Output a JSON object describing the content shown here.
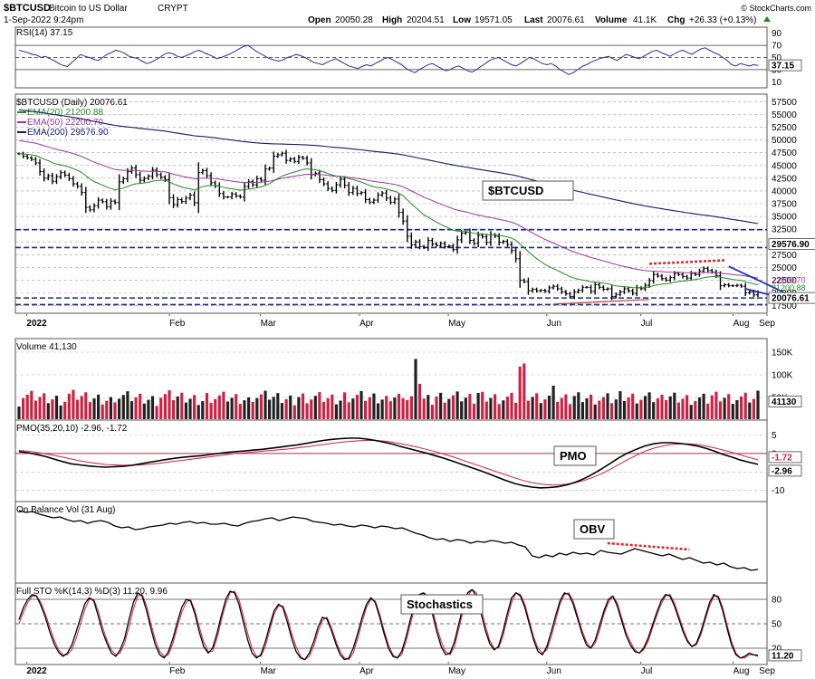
{
  "header": {
    "symbol": "$BTCUSD",
    "name": "Bitcoin to US Dollar",
    "exchange": "CRYPT",
    "datetime": "1-Sep-2022 9:24pm",
    "open_label": "Open",
    "open": "20050.28",
    "high_label": "High",
    "high": "20204.51",
    "low_label": "Low",
    "low": "19571.05",
    "last_label": "Last",
    "last": "20076.61",
    "volume_label": "Volume",
    "volume": "41.1K",
    "chg_label": "Chg",
    "chg": "+26.33 (+0.13%)",
    "watermark": "© StockCharts.com"
  },
  "colors": {
    "up": "#000000",
    "down": "#cc2244",
    "rsi": "#22338a",
    "ema20": "#1e8a1e",
    "ema50": "#a030a0",
    "ema200": "#141a6e",
    "signal": "#cc2244",
    "divergence": "#e0202a",
    "wedge": "#2030c8",
    "border": "#555555",
    "grid": "#c8c8c8"
  },
  "chart_data": [
    {
      "id": "rsi",
      "type": "line",
      "title": "RSI(14) 37.15",
      "y_ticks": [
        "90",
        "70",
        "50",
        "30",
        "10"
      ],
      "last_label": "37.15",
      "ylim": [
        0,
        100
      ],
      "levels": [
        70,
        50,
        30
      ],
      "values": [
        62,
        60,
        58,
        55,
        54,
        50,
        52,
        48,
        45,
        40,
        37,
        35,
        42,
        48,
        55,
        52,
        50,
        47,
        45,
        50,
        55,
        58,
        62,
        60,
        57,
        52,
        50,
        48,
        44,
        40,
        42,
        46,
        50,
        55,
        58,
        56,
        52,
        50,
        53,
        56,
        60,
        62,
        58,
        55,
        52,
        48,
        50,
        53,
        56,
        60,
        64,
        68,
        70,
        65,
        60,
        56,
        52,
        48,
        46,
        44,
        46,
        50,
        52,
        55,
        53,
        50,
        46,
        42,
        40,
        38,
        42,
        45,
        48,
        44,
        40,
        36,
        34,
        32,
        35,
        38,
        36,
        40,
        44,
        48,
        50,
        46,
        42,
        38,
        32,
        28,
        25,
        30,
        34,
        38,
        40,
        36,
        32,
        28,
        30,
        34,
        36,
        32,
        28,
        26,
        30,
        35,
        40,
        45,
        48,
        50,
        46,
        42,
        38,
        36,
        40,
        45,
        50,
        48,
        44,
        40,
        38,
        40,
        36,
        30,
        26,
        22,
        25,
        30,
        35,
        38,
        42,
        45,
        48,
        50,
        52,
        48,
        45,
        50,
        55,
        53,
        50,
        48,
        52,
        56,
        60,
        62,
        58,
        55,
        52,
        56,
        60,
        62,
        58,
        55,
        60,
        64,
        66,
        62,
        58,
        55,
        50,
        45,
        38,
        36,
        40,
        38,
        36,
        38,
        37
      ]
    },
    {
      "id": "price",
      "type": "ohlc",
      "title": "$BTCUSD (Daily) 20076.61",
      "annotation": "$BTCUSD",
      "legend": [
        "EMA(20) 21200.88",
        "EMA(50) 22200.70",
        "EMA(200) 29576.90"
      ],
      "last_label": "20076.61",
      "ema200_label": "29576.90",
      "y_ticks": [
        "57500",
        "55000",
        "52500",
        "50000",
        "47500",
        "45000",
        "42500",
        "40000",
        "37500",
        "35000",
        "32500",
        "30000",
        "27500",
        "25000",
        "22500",
        "20000",
        "17500"
      ],
      "ylim": [
        16000,
        59000
      ],
      "horizontal_levels": [
        32400,
        28900,
        19000,
        17700
      ],
      "closes": [
        47300,
        46800,
        46500,
        46200,
        45500,
        43800,
        42500,
        43000,
        41900,
        42800,
        43600,
        43100,
        42400,
        41400,
        40900,
        39700,
        36800,
        36300,
        37100,
        38200,
        37900,
        36900,
        38000,
        37700,
        41800,
        42400,
        43800,
        44500,
        43200,
        42100,
        42500,
        42900,
        44100,
        43200,
        42700,
        42200,
        38700,
        37300,
        38300,
        37900,
        38600,
        39200,
        37700,
        43600,
        44000,
        43000,
        41600,
        41000,
        39500,
        38800,
        38800,
        39400,
        39000,
        38800,
        40900,
        41800,
        41200,
        42400,
        42100,
        44300,
        44500,
        46800,
        47100,
        47400,
        46000,
        46300,
        45800,
        46600,
        46400,
        45500,
        43200,
        43500,
        42200,
        41400,
        40500,
        40100,
        41200,
        42300,
        41100,
        39700,
        40500,
        39500,
        39700,
        38300,
        37800,
        38200,
        39200,
        39600,
        38600,
        37800,
        38400,
        35800,
        34100,
        31100,
        29400,
        30000,
        29100,
        28900,
        30300,
        29600,
        29300,
        29700,
        29100,
        29200,
        28500,
        30400,
        31700,
        31900,
        30300,
        29700,
        31300,
        31000,
        29900,
        31400,
        31100,
        29900,
        30100,
        29500,
        28300,
        26700,
        22500,
        22200,
        20400,
        20700,
        20400,
        20500,
        20300,
        21000,
        21300,
        20800,
        20200,
        19800,
        19300,
        20200,
        20500,
        21100,
        21100,
        20300,
        21600,
        21100,
        20700,
        20800,
        19300,
        19700,
        20200,
        20800,
        20400,
        19900,
        21000,
        20800,
        21500,
        22400,
        23600,
        23300,
        22800,
        22500,
        23000,
        23800,
        23600,
        23200,
        22900,
        23800,
        23600,
        24300,
        24800,
        24400,
        24100,
        23400,
        21400,
        21600,
        21400,
        21400,
        21500,
        21300,
        20000,
        20200,
        19600,
        20100
      ]
    },
    {
      "id": "volume",
      "type": "bar",
      "title": "Volume 41,130",
      "y_ticks": [
        "150K",
        "100K",
        "50K"
      ],
      "last_label": "41130",
      "ylim": [
        0,
        180000
      ]
    },
    {
      "id": "pmo",
      "type": "line",
      "title": "PMO(35,20,10) -2.96, -1.72",
      "annotation": "PMO",
      "y_ticks": [
        "5",
        "0",
        "-5",
        "-10"
      ],
      "last_labels": [
        "-1.72",
        "-2.96"
      ],
      "ylim": [
        -13,
        9
      ],
      "zero_line": 0,
      "pmo": [
        0.5,
        0.2,
        -0.3,
        -0.8,
        -1.5,
        -2.2,
        -2.8,
        -3.1,
        -3.4,
        -3.6,
        -3.7,
        -3.6,
        -3.5,
        -3.2,
        -2.8,
        -2.4,
        -2.0,
        -1.6,
        -1.3,
        -1.0,
        -0.8,
        -0.6,
        -0.3,
        0.0,
        0.3,
        0.5,
        0.7,
        0.9,
        1.1,
        1.4,
        1.7,
        2.0,
        2.3,
        2.7,
        3.1,
        3.5,
        3.8,
        4.0,
        4.1,
        4.1,
        3.9,
        3.5,
        3.0,
        2.5,
        1.8,
        1.2,
        0.6,
        0.0,
        -0.7,
        -1.4,
        -2.2,
        -3.0,
        -3.8,
        -4.6,
        -5.5,
        -6.4,
        -7.3,
        -8.1,
        -8.7,
        -9.1,
        -9.3,
        -9.2,
        -9.0,
        -8.5,
        -7.8,
        -6.8,
        -5.6,
        -4.2,
        -2.7,
        -1.2,
        0.1,
        1.1,
        2.0,
        2.6,
        2.9,
        2.9,
        2.7,
        2.4,
        2.0,
        1.4,
        0.6,
        -0.3,
        -1.0,
        -1.8,
        -2.4,
        -2.96
      ],
      "signal": [
        0.8,
        0.6,
        0.3,
        -0.1,
        -0.5,
        -1.0,
        -1.5,
        -2.0,
        -2.4,
        -2.7,
        -3.0,
        -3.1,
        -3.2,
        -3.2,
        -3.1,
        -2.9,
        -2.7,
        -2.4,
        -2.1,
        -1.8,
        -1.5,
        -1.2,
        -0.9,
        -0.6,
        -0.3,
        0.0,
        0.2,
        0.4,
        0.6,
        0.8,
        1.0,
        1.2,
        1.5,
        1.8,
        2.1,
        2.4,
        2.7,
        3.0,
        3.2,
        3.4,
        3.5,
        3.5,
        3.3,
        3.0,
        2.6,
        2.1,
        1.6,
        1.0,
        0.4,
        -0.3,
        -1.0,
        -1.8,
        -2.6,
        -3.4,
        -4.2,
        -5.0,
        -5.8,
        -6.6,
        -7.3,
        -7.9,
        -8.3,
        -8.5,
        -8.5,
        -8.3,
        -7.9,
        -7.3,
        -6.5,
        -5.5,
        -4.3,
        -3.0,
        -1.7,
        -0.5,
        0.6,
        1.4,
        2.0,
        2.4,
        2.6,
        2.6,
        2.4,
        2.0,
        1.5,
        0.9,
        0.3,
        -0.4,
        -1.1,
        -1.72
      ]
    },
    {
      "id": "obv",
      "type": "line",
      "title": "On Balance Vol (31 Aug)",
      "annotation": "OBV",
      "values": [
        6.0,
        5.8,
        5.9,
        5.6,
        5.4,
        5.2,
        5.3,
        5.0,
        4.8,
        4.9,
        4.6,
        4.8,
        4.9,
        4.7,
        4.3,
        4.1,
        4.2,
        3.9,
        4.0,
        4.2,
        4.3,
        4.4,
        4.6,
        4.5,
        4.7,
        4.8,
        4.6,
        4.7,
        4.5,
        4.5,
        4.6,
        4.4,
        4.3,
        4.6,
        4.8,
        4.9,
        5.1,
        5.2,
        4.9,
        5.1,
        5.3,
        5.2,
        5.1,
        4.8,
        4.7,
        4.6,
        4.4,
        4.5,
        4.3,
        4.2,
        4.4,
        4.3,
        4.1,
        4.3,
        4.2,
        4.0,
        4.1,
        3.8,
        3.5,
        3.3,
        3.0,
        2.8,
        2.9,
        2.6,
        2.8,
        2.7,
        2.4,
        2.6,
        2.5,
        2.7,
        2.6,
        2.4,
        2.5,
        2.2,
        2.0,
        1.0,
        0.8,
        1.1,
        0.9,
        1.3,
        1.1,
        1.4,
        1.2,
        1.3,
        1.1,
        1.6,
        1.4,
        1.3,
        1.2,
        1.5,
        1.8,
        1.6,
        1.4,
        1.2,
        1.0,
        1.2,
        0.9,
        0.6,
        0.8,
        0.5,
        0.2,
        0.3,
        0.0,
        0.2,
        -0.2,
        -0.4,
        -0.3,
        -0.6,
        -0.5
      ]
    },
    {
      "id": "stochastics",
      "type": "line",
      "title": "Full STO %K(14,3) %D(3) 11.20, 9.96",
      "annotation": "Stochastics",
      "y_ticks": [
        "80",
        "50",
        "20"
      ],
      "last_label": "11.20",
      "ylim": [
        0,
        100
      ],
      "levels": [
        80,
        50,
        20
      ],
      "k": [
        55,
        70,
        80,
        86,
        84,
        72,
        58,
        40,
        25,
        15,
        10,
        14,
        24,
        40,
        58,
        75,
        82,
        78,
        60,
        40,
        26,
        14,
        10,
        18,
        32,
        55,
        76,
        88,
        84,
        66,
        44,
        24,
        12,
        8,
        16,
        32,
        52,
        70,
        80,
        78,
        62,
        40,
        22,
        14,
        20,
        38,
        60,
        80,
        90,
        88,
        74,
        52,
        30,
        14,
        8,
        12,
        28,
        48,
        66,
        74,
        70,
        52,
        32,
        16,
        8,
        6,
        14,
        28,
        46,
        58,
        56,
        42,
        26,
        12,
        6,
        8,
        20,
        38,
        58,
        74,
        82,
        76,
        58,
        38,
        20,
        10,
        8,
        16,
        34,
        56,
        74,
        86,
        88,
        80,
        62,
        40,
        22,
        12,
        14,
        28,
        50,
        72,
        88,
        92,
        84,
        64,
        42,
        26,
        18,
        22,
        40,
        62,
        82,
        88,
        84,
        70,
        50,
        30,
        16,
        12,
        22,
        40,
        60,
        78,
        88,
        86,
        74,
        56,
        38,
        24,
        20,
        30,
        48,
        66,
        80,
        84,
        72,
        54,
        36,
        24,
        16,
        14,
        20,
        32,
        48,
        64,
        78,
        86,
        84,
        72,
        56,
        40,
        28,
        22,
        26,
        40,
        58,
        76,
        86,
        82,
        66,
        44,
        24,
        12,
        8,
        10,
        14,
        12,
        11.2
      ],
      "d": [
        50,
        64,
        76,
        84,
        84,
        76,
        62,
        46,
        30,
        18,
        12,
        12,
        18,
        32,
        50,
        68,
        80,
        80,
        66,
        46,
        30,
        18,
        12,
        14,
        26,
        46,
        68,
        84,
        86,
        72,
        50,
        30,
        16,
        10,
        12,
        26,
        46,
        64,
        76,
        80,
        66,
        46,
        28,
        16,
        16,
        32,
        54,
        74,
        88,
        90,
        80,
        60,
        38,
        20,
        10,
        10,
        22,
        42,
        62,
        72,
        72,
        58,
        38,
        22,
        10,
        6,
        10,
        22,
        40,
        54,
        58,
        46,
        30,
        16,
        8,
        6,
        14,
        32,
        52,
        70,
        80,
        78,
        62,
        42,
        24,
        12,
        8,
        12,
        28,
        50,
        70,
        82,
        88,
        84,
        68,
        46,
        28,
        16,
        12,
        22,
        44,
        66,
        84,
        92,
        88,
        70,
        48,
        30,
        20,
        20,
        34,
        56,
        76,
        88,
        86,
        74,
        54,
        34,
        20,
        14,
        18,
        34,
        54,
        74,
        86,
        88,
        78,
        60,
        42,
        28,
        20,
        26,
        42,
        62,
        76,
        84,
        76,
        58,
        40,
        28,
        18,
        14,
        18,
        28,
        44,
        60,
        74,
        84,
        86,
        76,
        60,
        44,
        30,
        22,
        24,
        36,
        54,
        72,
        84,
        84,
        70,
        48,
        28,
        14,
        8,
        8,
        12,
        12,
        9.96
      ]
    }
  ],
  "x_axis": {
    "months": [
      {
        "label": "2022",
        "bold": true,
        "frac": 0.015
      },
      {
        "label": "Feb",
        "bold": false,
        "frac": 0.205
      },
      {
        "label": "Mar",
        "bold": false,
        "frac": 0.326
      },
      {
        "label": "Apr",
        "bold": false,
        "frac": 0.458
      },
      {
        "label": "May",
        "bold": false,
        "frac": 0.576
      },
      {
        "label": "Jun",
        "bold": false,
        "frac": 0.707
      },
      {
        "label": "Jul",
        "bold": false,
        "frac": 0.832
      },
      {
        "label": "Aug",
        "bold": false,
        "frac": 0.955
      },
      {
        "label": "Sep",
        "bold": false,
        "frac": 1.0
      }
    ]
  }
}
